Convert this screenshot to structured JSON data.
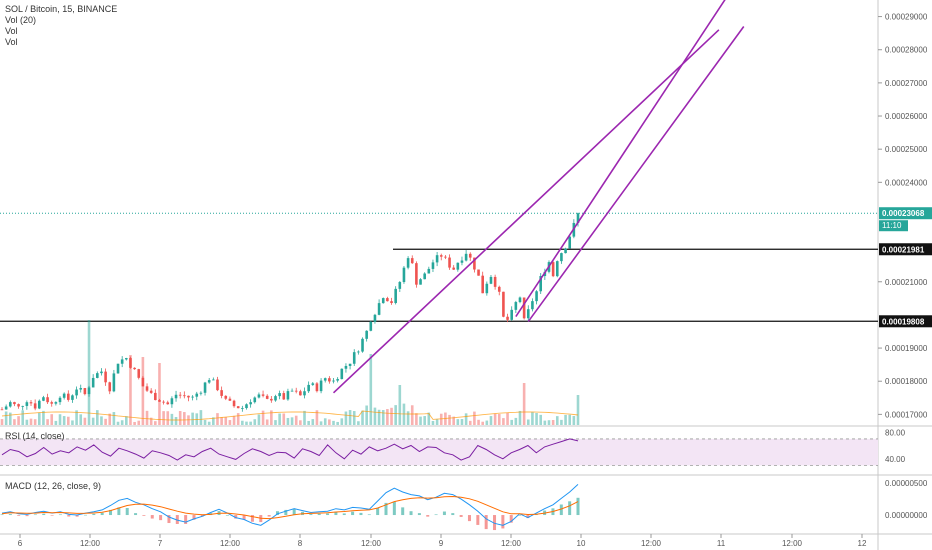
{
  "legend": {
    "symbol_line": "SOL / Bitcoin, 15, BINANCE",
    "volume_line": "Vol (20)",
    "vol_line_2": "Vol",
    "vol_line_3": "Vol"
  },
  "rsi_label": "RSI (14, close)",
  "macd_label": "MACD (12, 26, close, 9)",
  "colors": {
    "up": "#26a69a",
    "down": "#ef5350",
    "trendline": "#9c27b0",
    "rsi": "#7b1fa2",
    "rsi_band": "#f3e5f5",
    "macd_line": "#2196f3",
    "signal_line": "#ff6d00",
    "last_price_badge": "#26a69a"
  },
  "chart_data": {
    "type": "candlestick",
    "symbol": "SOL / Bitcoin",
    "interval": "15",
    "exchange": "BINANCE",
    "price_axis": {
      "ticks": [
        "0.00029000",
        "0.00028000",
        "0.00027000",
        "0.00026000",
        "0.00025000",
        "0.00024000",
        "0.00021000",
        "0.00019000",
        "0.00018000",
        "0.00017000"
      ],
      "range": [
        0.000168,
        0.000295
      ]
    },
    "last_price": "0.00023068",
    "countdown": "11:10",
    "horizontal_levels": [
      {
        "price": "0.00021981"
      },
      {
        "price": "0.00019808"
      }
    ],
    "x_axis": {
      "ticks": [
        "6",
        "12:00",
        "7",
        "12:00",
        "8",
        "12:00",
        "9",
        "12:00",
        "10",
        "12:00",
        "11",
        "12:00",
        "12"
      ]
    },
    "price_path": [
      [
        0,
        0.0001715
      ],
      [
        2,
        0.0001735
      ],
      [
        4,
        0.000172
      ],
      [
        6,
        0.0001745
      ],
      [
        8,
        0.0001725
      ],
      [
        10,
        0.0001755
      ],
      [
        12,
        0.000173
      ],
      [
        14,
        0.000176
      ],
      [
        16,
        0.0001745
      ],
      [
        18,
        0.000178
      ],
      [
        20,
        0.000176
      ],
      [
        22,
        0.0001815
      ],
      [
        24,
        0.000183
      ],
      [
        26,
        0.000178
      ],
      [
        28,
        0.000186
      ],
      [
        30,
        0.000187
      ],
      [
        32,
        0.000183
      ],
      [
        34,
        0.0001785
      ],
      [
        36,
        0.000176
      ],
      [
        38,
        0.0001745
      ],
      [
        40,
        0.000173
      ],
      [
        42,
        0.000176
      ],
      [
        44,
        0.0001755
      ],
      [
        46,
        0.000175
      ],
      [
        48,
        0.0001775
      ],
      [
        50,
        0.000181
      ],
      [
        52,
        0.000178
      ],
      [
        54,
        0.000174
      ],
      [
        56,
        0.0001725
      ],
      [
        58,
        0.000172
      ],
      [
        60,
        0.0001745
      ],
      [
        62,
        0.0001755
      ],
      [
        64,
        0.000174
      ],
      [
        66,
        0.000176
      ],
      [
        68,
        0.000175
      ],
      [
        70,
        0.000177
      ],
      [
        72,
        0.0001755
      ],
      [
        74,
        0.000179
      ],
      [
        76,
        0.000178
      ],
      [
        78,
        0.000181
      ],
      [
        80,
        0.00018
      ],
      [
        82,
        0.0001835
      ],
      [
        84,
        0.000186
      ],
      [
        86,
        0.00019
      ],
      [
        88,
        0.000195
      ],
      [
        89,
        0.000199
      ],
      [
        90,
        0.000201
      ],
      [
        92,
        0.000206
      ],
      [
        94,
        0.000204
      ],
      [
        96,
        0.00021
      ],
      [
        97,
        0.000214
      ],
      [
        98,
        0.000218
      ],
      [
        99,
        0.000215
      ],
      [
        100,
        0.00021
      ],
      [
        102,
        0.000212
      ],
      [
        104,
        0.000216
      ],
      [
        106,
        0.000218
      ],
      [
        108,
        0.000215
      ],
      [
        109,
        0.000214
      ],
      [
        110,
        0.000216
      ],
      [
        112,
        0.000219
      ],
      [
        113,
        0.000217
      ],
      [
        114,
        0.0002145
      ],
      [
        115,
        0.0002115
      ],
      [
        116,
        0.000207
      ],
      [
        117,
        0.00021
      ],
      [
        118,
        0.000212
      ],
      [
        119,
        0.0002095
      ],
      [
        120,
        0.000206
      ],
      [
        121,
        0.000199
      ],
      [
        122,
        0.0001985
      ],
      [
        123,
        0.0002005
      ],
      [
        124,
        0.0002035
      ],
      [
        125,
        0.0002055
      ],
      [
        126,
        0.000198
      ],
      [
        127,
        0.000201
      ],
      [
        128,
        0.0002045
      ],
      [
        129,
        0.000207
      ],
      [
        130,
        0.000211
      ],
      [
        131,
        0.000214
      ],
      [
        132,
        0.000216
      ],
      [
        133,
        0.000212
      ],
      [
        134,
        0.000217
      ],
      [
        135,
        0.000219
      ],
      [
        136,
        0.000221
      ],
      [
        137,
        0.000224
      ],
      [
        138,
        0.000227
      ],
      [
        139,
        0.00023068
      ]
    ],
    "trendlines": [
      {
        "from": [
          80,
          0.0001765
        ],
        "to": [
          173,
          0.000286
        ]
      },
      {
        "from": [
          124,
          0.0001995
        ],
        "to": [
          176,
          0.000298
        ]
      },
      {
        "from": [
          127,
          0.000198
        ],
        "to": [
          179,
          0.000287
        ]
      }
    ],
    "volume": {
      "label": "Vol (20)"
    },
    "rsi": {
      "label": "RSI (14, close)",
      "ticks": [
        "80.00",
        "40.00"
      ],
      "band": [
        30,
        70
      ],
      "range": [
        20,
        85
      ],
      "values": [
        46,
        54,
        51,
        43,
        48,
        57,
        47,
        52,
        49,
        58,
        53,
        61,
        50,
        44,
        56,
        52,
        47,
        41,
        52,
        49,
        45,
        38,
        46,
        43,
        51,
        56,
        47,
        43,
        39,
        48,
        55,
        51,
        45,
        50,
        49,
        41,
        55,
        51,
        45,
        61,
        49,
        40,
        53,
        47,
        58,
        52,
        56,
        62,
        55,
        60,
        51,
        58,
        57,
        49,
        46,
        38,
        43,
        60,
        54,
        46,
        40,
        49,
        54,
        60,
        49,
        58,
        62,
        66,
        70,
        67
      ]
    },
    "macd": {
      "label": "MACD (12, 26, close, 9)",
      "ticks": [
        "0.00000500",
        "0.00000000"
      ],
      "range": [
        -2.5e-06,
        5.8e-06
      ],
      "macd_line": [
        0.3,
        0.5,
        0.2,
        0.1,
        0.4,
        0.6,
        0.3,
        0.5,
        0.1,
        0.0,
        0.3,
        0.5,
        0.8,
        1.5,
        2.3,
        2.6,
        2.0,
        1.6,
        1.0,
        0.5,
        -0.3,
        -0.8,
        -1.1,
        -0.6,
        -0.2,
        0.4,
        0.9,
        0.3,
        -0.4,
        -0.7,
        -1.3,
        -1.6,
        -0.8,
        0.2,
        0.6,
        1.0,
        0.7,
        0.4,
        0.5,
        0.6,
        1.0,
        0.8,
        1.2,
        1.1,
        0.9,
        2.2,
        3.5,
        4.2,
        3.6,
        3.2,
        3.0,
        2.4,
        2.8,
        3.4,
        3.2,
        2.5,
        1.6,
        0.6,
        -0.6,
        -1.3,
        -1.6,
        -1.0,
        0.2,
        -0.4,
        0.3,
        1.0,
        1.6,
        2.6,
        3.6,
        4.8
      ],
      "signal_line": [
        0.2,
        0.35,
        0.32,
        0.27,
        0.3,
        0.4,
        0.37,
        0.4,
        0.33,
        0.25,
        0.27,
        0.32,
        0.45,
        0.7,
        1.1,
        1.5,
        1.7,
        1.72,
        1.55,
        1.3,
        0.95,
        0.6,
        0.3,
        0.14,
        0.03,
        0.1,
        0.28,
        0.3,
        0.16,
        0.0,
        -0.25,
        -0.5,
        -0.56,
        -0.4,
        -0.2,
        0.05,
        0.2,
        0.25,
        0.3,
        0.36,
        0.48,
        0.55,
        0.68,
        0.76,
        0.8,
        1.1,
        1.6,
        2.1,
        2.4,
        2.6,
        2.7,
        2.65,
        2.7,
        2.85,
        2.9,
        2.8,
        2.55,
        2.15,
        1.6,
        1.05,
        0.5,
        0.2,
        0.2,
        0.08,
        0.12,
        0.3,
        0.55,
        0.95,
        1.45,
        2.1
      ]
    }
  }
}
